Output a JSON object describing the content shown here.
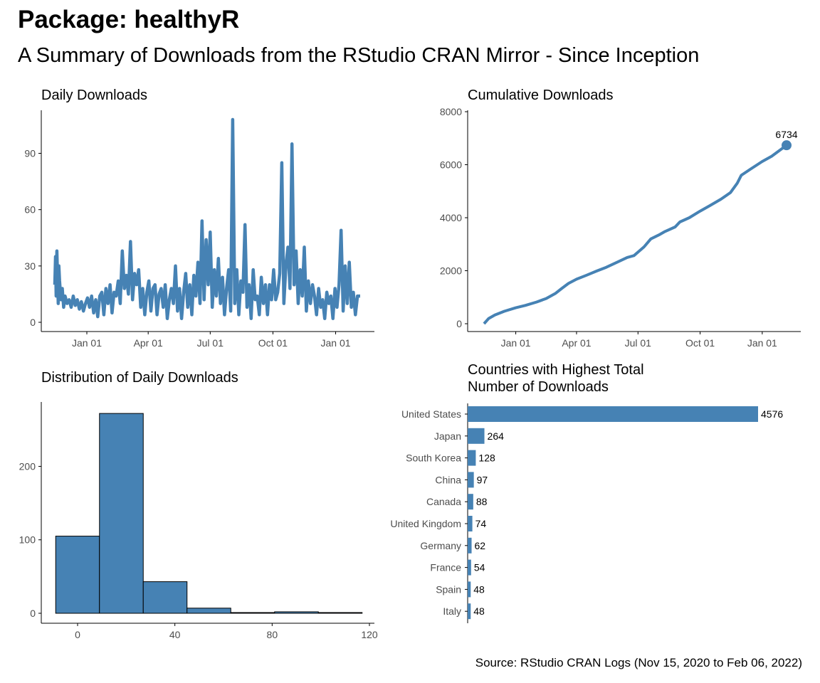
{
  "title": "Package: healthyR",
  "subtitle": "A Summary of Downloads from the RStudio CRAN Mirror - Since Inception",
  "caption": "Source: RStudio CRAN Logs (Nov 15, 2020 to Feb 06, 2022)",
  "colors": {
    "fill": "#4682b4",
    "axis": "#000000",
    "tick_text": "#4d4d4d"
  },
  "chart_data": [
    {
      "id": "daily",
      "type": "line",
      "title": "Daily Downloads",
      "x_ticks": [
        "Jan 01",
        "Apr 01",
        "Jul 01",
        "Oct 01",
        "Jan 01"
      ],
      "x_tick_dates": [
        "2021-01-01",
        "2021-04-01",
        "2021-07-01",
        "2021-10-01",
        "2022-01-01"
      ],
      "xlim": [
        "2020-11-15",
        "2022-02-06"
      ],
      "y_ticks": [
        0,
        30,
        60,
        90
      ],
      "ylim": [
        0,
        108
      ],
      "points": [
        [
          "2020-11-15",
          20
        ],
        [
          "2020-11-16",
          35
        ],
        [
          "2020-11-17",
          14
        ],
        [
          "2020-11-18",
          38
        ],
        [
          "2020-11-19",
          25
        ],
        [
          "2020-11-20",
          10
        ],
        [
          "2020-11-21",
          30
        ],
        [
          "2020-11-22",
          22
        ],
        [
          "2020-11-24",
          12
        ],
        [
          "2020-11-26",
          18
        ],
        [
          "2020-11-28",
          8
        ],
        [
          "2020-11-30",
          14
        ],
        [
          "2020-12-03",
          10
        ],
        [
          "2020-12-06",
          12
        ],
        [
          "2020-12-09",
          8
        ],
        [
          "2020-12-12",
          14
        ],
        [
          "2020-12-15",
          9
        ],
        [
          "2020-12-18",
          12
        ],
        [
          "2020-12-21",
          7
        ],
        [
          "2020-12-24",
          11
        ],
        [
          "2020-12-27",
          6
        ],
        [
          "2020-12-30",
          10
        ],
        [
          "2021-01-02",
          13
        ],
        [
          "2021-01-05",
          8
        ],
        [
          "2021-01-08",
          14
        ],
        [
          "2021-01-11",
          5
        ],
        [
          "2021-01-14",
          12
        ],
        [
          "2021-01-17",
          3
        ],
        [
          "2021-01-20",
          14
        ],
        [
          "2021-01-23",
          16
        ],
        [
          "2021-01-26",
          4
        ],
        [
          "2021-01-29",
          18
        ],
        [
          "2021-02-01",
          10
        ],
        [
          "2021-02-04",
          20
        ],
        [
          "2021-02-07",
          5
        ],
        [
          "2021-02-10",
          16
        ],
        [
          "2021-02-13",
          14
        ],
        [
          "2021-02-16",
          22
        ],
        [
          "2021-02-19",
          10
        ],
        [
          "2021-02-22",
          38
        ],
        [
          "2021-02-25",
          18
        ],
        [
          "2021-02-28",
          25
        ],
        [
          "2021-03-03",
          15
        ],
        [
          "2021-03-06",
          43
        ],
        [
          "2021-03-09",
          12
        ],
        [
          "2021-03-12",
          26
        ],
        [
          "2021-03-15",
          20
        ],
        [
          "2021-03-18",
          28
        ],
        [
          "2021-03-21",
          8
        ],
        [
          "2021-03-24",
          18
        ],
        [
          "2021-03-27",
          4
        ],
        [
          "2021-03-30",
          16
        ],
        [
          "2021-04-02",
          22
        ],
        [
          "2021-04-05",
          6
        ],
        [
          "2021-04-08",
          18
        ],
        [
          "2021-04-11",
          20
        ],
        [
          "2021-04-14",
          4
        ],
        [
          "2021-04-17",
          15
        ],
        [
          "2021-04-20",
          18
        ],
        [
          "2021-04-23",
          8
        ],
        [
          "2021-04-26",
          20
        ],
        [
          "2021-04-29",
          2
        ],
        [
          "2021-05-02",
          12
        ],
        [
          "2021-05-05",
          18
        ],
        [
          "2021-05-08",
          10
        ],
        [
          "2021-05-11",
          30
        ],
        [
          "2021-05-14",
          6
        ],
        [
          "2021-05-17",
          18
        ],
        [
          "2021-05-20",
          2
        ],
        [
          "2021-05-23",
          16
        ],
        [
          "2021-05-26",
          26
        ],
        [
          "2021-05-29",
          8
        ],
        [
          "2021-06-01",
          20
        ],
        [
          "2021-06-04",
          4
        ],
        [
          "2021-06-07",
          25
        ],
        [
          "2021-06-10",
          14
        ],
        [
          "2021-06-13",
          32
        ],
        [
          "2021-06-16",
          10
        ],
        [
          "2021-06-19",
          54
        ],
        [
          "2021-06-22",
          12
        ],
        [
          "2021-06-25",
          44
        ],
        [
          "2021-06-28",
          20
        ],
        [
          "2021-07-01",
          48
        ],
        [
          "2021-07-04",
          8
        ],
        [
          "2021-07-07",
          28
        ],
        [
          "2021-07-10",
          14
        ],
        [
          "2021-07-13",
          34
        ],
        [
          "2021-07-16",
          10
        ],
        [
          "2021-07-19",
          24
        ],
        [
          "2021-07-22",
          4
        ],
        [
          "2021-07-25",
          18
        ],
        [
          "2021-07-28",
          28
        ],
        [
          "2021-07-31",
          6
        ],
        [
          "2021-08-03",
          108
        ],
        [
          "2021-08-06",
          10
        ],
        [
          "2021-08-09",
          28
        ],
        [
          "2021-08-12",
          4
        ],
        [
          "2021-08-15",
          22
        ],
        [
          "2021-08-18",
          16
        ],
        [
          "2021-08-21",
          52
        ],
        [
          "2021-08-24",
          8
        ],
        [
          "2021-08-27",
          20
        ],
        [
          "2021-08-30",
          2
        ],
        [
          "2021-09-02",
          28
        ],
        [
          "2021-09-05",
          12
        ],
        [
          "2021-09-08",
          14
        ],
        [
          "2021-09-11",
          4
        ],
        [
          "2021-09-14",
          24
        ],
        [
          "2021-09-17",
          10
        ],
        [
          "2021-09-20",
          20
        ],
        [
          "2021-09-23",
          4
        ],
        [
          "2021-09-26",
          20
        ],
        [
          "2021-09-29",
          12
        ],
        [
          "2021-10-02",
          28
        ],
        [
          "2021-10-05",
          12
        ],
        [
          "2021-10-08",
          16
        ],
        [
          "2021-10-11",
          26
        ],
        [
          "2021-10-14",
          85
        ],
        [
          "2021-10-17",
          10
        ],
        [
          "2021-10-20",
          30
        ],
        [
          "2021-10-23",
          40
        ],
        [
          "2021-10-26",
          18
        ],
        [
          "2021-10-29",
          95
        ],
        [
          "2021-11-01",
          20
        ],
        [
          "2021-11-04",
          38
        ],
        [
          "2021-11-07",
          10
        ],
        [
          "2021-11-10",
          28
        ],
        [
          "2021-11-13",
          14
        ],
        [
          "2021-11-16",
          40
        ],
        [
          "2021-11-19",
          6
        ],
        [
          "2021-11-22",
          22
        ],
        [
          "2021-11-25",
          10
        ],
        [
          "2021-11-28",
          20
        ],
        [
          "2021-12-01",
          14
        ],
        [
          "2021-12-04",
          4
        ],
        [
          "2021-12-07",
          18
        ],
        [
          "2021-12-10",
          8
        ],
        [
          "2021-12-13",
          12
        ],
        [
          "2021-12-16",
          2
        ],
        [
          "2021-12-19",
          16
        ],
        [
          "2021-12-22",
          10
        ],
        [
          "2021-12-25",
          14
        ],
        [
          "2021-12-28",
          2
        ],
        [
          "2021-12-31",
          18
        ],
        [
          "2022-01-03",
          8
        ],
        [
          "2022-01-06",
          20
        ],
        [
          "2022-01-09",
          49
        ],
        [
          "2022-01-12",
          6
        ],
        [
          "2022-01-15",
          30
        ],
        [
          "2022-01-18",
          10
        ],
        [
          "2022-01-21",
          32
        ],
        [
          "2022-01-24",
          8
        ],
        [
          "2022-01-27",
          16
        ],
        [
          "2022-01-30",
          4
        ],
        [
          "2022-02-02",
          14
        ],
        [
          "2022-02-06",
          14
        ]
      ]
    },
    {
      "id": "cumulative",
      "type": "line",
      "title": "Cumulative Downloads",
      "x_ticks": [
        "Jan 01",
        "Apr 01",
        "Jul 01",
        "Oct 01",
        "Jan 01"
      ],
      "x_tick_dates": [
        "2021-01-01",
        "2021-04-01",
        "2021-07-01",
        "2021-10-01",
        "2022-01-01"
      ],
      "xlim": [
        "2020-11-15",
        "2022-02-06"
      ],
      "y_ticks": [
        0,
        2000,
        4000,
        6000,
        8000
      ],
      "ylim": [
        0,
        8000
      ],
      "end_label": "6734",
      "points": [
        [
          "2020-11-15",
          0
        ],
        [
          "2020-11-22",
          200
        ],
        [
          "2020-12-01",
          330
        ],
        [
          "2020-12-15",
          470
        ],
        [
          "2021-01-01",
          600
        ],
        [
          "2021-01-15",
          690
        ],
        [
          "2021-02-01",
          820
        ],
        [
          "2021-02-15",
          950
        ],
        [
          "2021-03-01",
          1150
        ],
        [
          "2021-03-10",
          1330
        ],
        [
          "2021-03-20",
          1520
        ],
        [
          "2021-04-01",
          1680
        ],
        [
          "2021-04-15",
          1820
        ],
        [
          "2021-05-01",
          1990
        ],
        [
          "2021-05-15",
          2130
        ],
        [
          "2021-06-01",
          2330
        ],
        [
          "2021-06-15",
          2500
        ],
        [
          "2021-06-25",
          2570
        ],
        [
          "2021-07-01",
          2700
        ],
        [
          "2021-07-10",
          2900
        ],
        [
          "2021-07-20",
          3200
        ],
        [
          "2021-08-01",
          3350
        ],
        [
          "2021-08-10",
          3480
        ],
        [
          "2021-08-25",
          3650
        ],
        [
          "2021-09-01",
          3840
        ],
        [
          "2021-09-15",
          4000
        ],
        [
          "2021-10-01",
          4250
        ],
        [
          "2021-10-15",
          4450
        ],
        [
          "2021-11-01",
          4700
        ],
        [
          "2021-11-15",
          4950
        ],
        [
          "2021-11-25",
          5300
        ],
        [
          "2021-12-01",
          5600
        ],
        [
          "2021-12-15",
          5840
        ],
        [
          "2022-01-01",
          6120
        ],
        [
          "2022-01-15",
          6320
        ],
        [
          "2022-02-06",
          6734
        ]
      ]
    },
    {
      "id": "histogram",
      "type": "bar",
      "title": "Distribution of Daily Downloads",
      "x_ticks": [
        0,
        40,
        80,
        120
      ],
      "xlim": [
        -14,
        120
      ],
      "y_ticks": [
        0,
        100,
        200
      ],
      "ylim": [
        0,
        276
      ],
      "bins": [
        {
          "from": -9,
          "to": 9,
          "count": 105
        },
        {
          "from": 9,
          "to": 27,
          "count": 272
        },
        {
          "from": 27,
          "to": 45,
          "count": 43
        },
        {
          "from": 45,
          "to": 63,
          "count": 7
        },
        {
          "from": 63,
          "to": 81,
          "count": 1
        },
        {
          "from": 81,
          "to": 99,
          "count": 2
        },
        {
          "from": 99,
          "to": 117,
          "count": 1
        }
      ]
    },
    {
      "id": "countries",
      "type": "bar",
      "orientation": "horizontal",
      "title_lines": [
        "Countries with Highest Total",
        "Number of Downloads"
      ],
      "categories": [
        "United States",
        "Japan",
        "South Korea",
        "China",
        "Canada",
        "United Kingdom",
        "Germany",
        "France",
        "Spain",
        "Italy"
      ],
      "values": [
        4576,
        264,
        128,
        97,
        88,
        74,
        62,
        54,
        48,
        48
      ],
      "labels": [
        "4576",
        "264",
        "128",
        "97",
        "88",
        "74",
        "62",
        "54",
        "48",
        "48"
      ],
      "xlim": [
        0,
        4576
      ]
    }
  ]
}
